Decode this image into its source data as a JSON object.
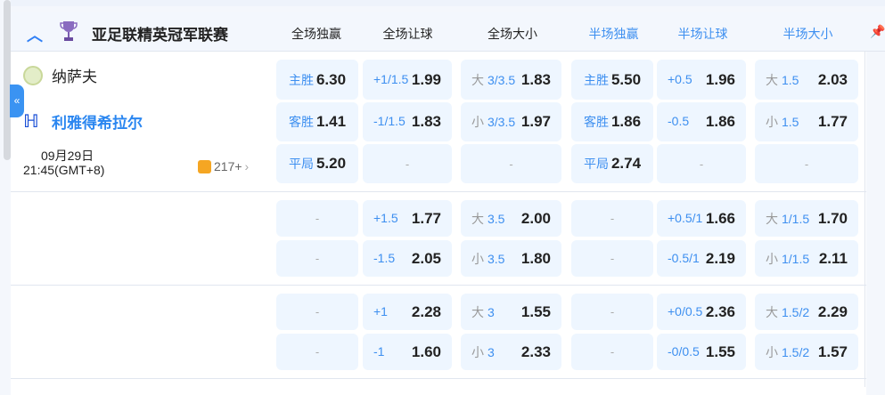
{
  "league": {
    "name": "亚足联精英冠军联赛",
    "collapse_icon": "chevron-up-icon",
    "trophy_icon": "trophy-icon"
  },
  "columns": [
    {
      "label": "全场独赢",
      "highlight": false
    },
    {
      "label": "全场让球",
      "highlight": false
    },
    {
      "label": "全场大小",
      "highlight": false
    },
    {
      "label": "半场独赢",
      "highlight": true
    },
    {
      "label": "半场让球",
      "highlight": true
    },
    {
      "label": "半场大小",
      "highlight": true
    }
  ],
  "match": {
    "home": "纳萨夫",
    "away": "利雅得希拉尔",
    "date": "09月29日",
    "time": "21:45(GMT+8)",
    "more_count": "217+"
  },
  "sidetab_icon": "«",
  "empty": "-",
  "colors": {
    "accent": "#3d8ff0",
    "cell_bg": "#eef6ff"
  },
  "rows": [
    [
      {
        "t": "win",
        "l": "主胜",
        "v": "6.30"
      },
      {
        "t": "line",
        "l": "+1/1.5",
        "v": "1.99"
      },
      {
        "t": "line",
        "p": "大",
        "l": "3/3.5",
        "v": "1.83"
      },
      {
        "t": "win",
        "l": "主胜",
        "v": "5.50"
      },
      {
        "t": "line",
        "l": "+0.5",
        "v": "1.96"
      },
      {
        "t": "line",
        "p": "大",
        "l": "1.5",
        "v": "2.03"
      }
    ],
    [
      {
        "t": "win",
        "l": "客胜",
        "v": "1.41"
      },
      {
        "t": "line",
        "l": "-1/1.5",
        "v": "1.83"
      },
      {
        "t": "line",
        "p": "小",
        "l": "3/3.5",
        "v": "1.97"
      },
      {
        "t": "win",
        "l": "客胜",
        "v": "1.86"
      },
      {
        "t": "line",
        "l": "-0.5",
        "v": "1.86"
      },
      {
        "t": "line",
        "p": "小",
        "l": "1.5",
        "v": "1.77"
      }
    ],
    [
      {
        "t": "win",
        "l": "平局",
        "v": "5.20"
      },
      {
        "t": "empty"
      },
      {
        "t": "empty"
      },
      {
        "t": "win",
        "l": "平局",
        "v": "2.74"
      },
      {
        "t": "empty"
      },
      {
        "t": "empty"
      }
    ],
    [
      {
        "t": "empty"
      },
      {
        "t": "line",
        "l": "+1.5",
        "v": "1.77"
      },
      {
        "t": "line",
        "p": "大",
        "l": "3.5",
        "v": "2.00"
      },
      {
        "t": "empty"
      },
      {
        "t": "line",
        "l": "+0.5/1",
        "v": "1.66"
      },
      {
        "t": "line",
        "p": "大",
        "l": "1/1.5",
        "v": "1.70"
      }
    ],
    [
      {
        "t": "empty"
      },
      {
        "t": "line",
        "l": "-1.5",
        "v": "2.05"
      },
      {
        "t": "line",
        "p": "小",
        "l": "3.5",
        "v": "1.80"
      },
      {
        "t": "empty"
      },
      {
        "t": "line",
        "l": "-0.5/1",
        "v": "2.19"
      },
      {
        "t": "line",
        "p": "小",
        "l": "1/1.5",
        "v": "2.11"
      }
    ],
    [
      {
        "t": "empty"
      },
      {
        "t": "line",
        "l": "+1",
        "v": "2.28"
      },
      {
        "t": "line",
        "p": "大",
        "l": "3",
        "v": "1.55"
      },
      {
        "t": "empty"
      },
      {
        "t": "line",
        "l": "+0/0.5",
        "v": "2.36"
      },
      {
        "t": "line",
        "p": "大",
        "l": "1.5/2",
        "v": "2.29"
      }
    ],
    [
      {
        "t": "empty"
      },
      {
        "t": "line",
        "l": "-1",
        "v": "1.60"
      },
      {
        "t": "line",
        "p": "小",
        "l": "3",
        "v": "2.33"
      },
      {
        "t": "empty"
      },
      {
        "t": "line",
        "l": "-0/0.5",
        "v": "1.55"
      },
      {
        "t": "line",
        "p": "小",
        "l": "1.5/2",
        "v": "1.57"
      }
    ]
  ]
}
